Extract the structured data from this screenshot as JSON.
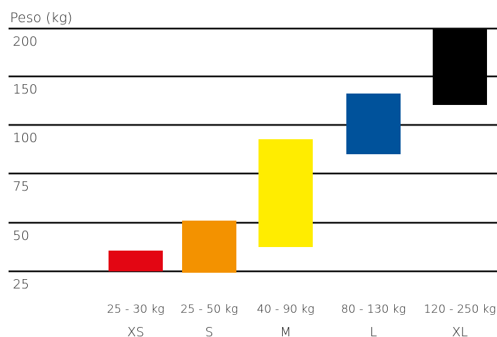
{
  "chart_data": {
    "type": "bar",
    "subtype": "floating-range",
    "title": "",
    "xlabel": "",
    "ylabel": "Peso (kg)",
    "y_ticks": [
      "200",
      "150",
      "100",
      "75",
      "50",
      "25"
    ],
    "grid": true,
    "legend": "none",
    "categories": [
      "XS",
      "S",
      "M",
      "L",
      "XL"
    ],
    "range_labels": [
      "25 - 30 kg",
      "25 - 50 kg",
      "40 - 90 kg",
      "80 - 130 kg",
      "120 - 250 kg"
    ],
    "bars": [
      {
        "category": "XS",
        "low": 25,
        "high": 30,
        "color": "#e30613"
      },
      {
        "category": "S",
        "low": 25,
        "high": 50,
        "color": "#f39200"
      },
      {
        "category": "M",
        "low": 40,
        "high": 90,
        "color": "#ffed00"
      },
      {
        "category": "L",
        "low": 80,
        "high": 130,
        "color": "#00529b"
      },
      {
        "category": "XL",
        "low": 120,
        "high": 250,
        "color": "#000000"
      }
    ]
  }
}
